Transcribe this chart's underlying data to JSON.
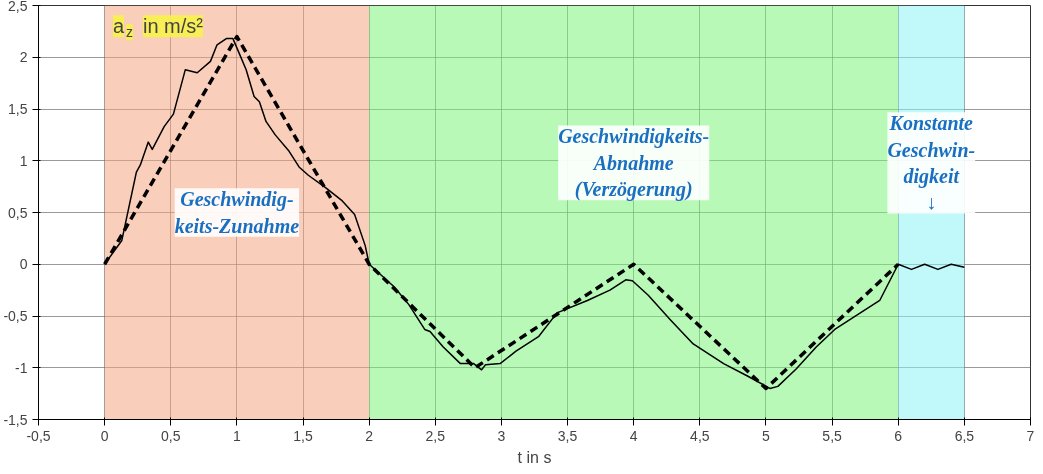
{
  "chart_data": {
    "type": "line",
    "xlabel": "t in s",
    "ylabel": "a$_{z}$ in m/s²",
    "xlim": [
      -0.5,
      7
    ],
    "ylim": [
      -1.5,
      2.5
    ],
    "xticks": [
      {
        "value": -0.5,
        "label": "-0,5"
      },
      0,
      {
        "value": 0.5,
        "label": "0,5"
      },
      1,
      {
        "value": 1.5,
        "label": "1,5"
      },
      2,
      {
        "value": 2.5,
        "label": "2,5"
      },
      3,
      {
        "value": 3.5,
        "label": "3,5"
      },
      4,
      {
        "value": 4.5,
        "label": "4,5"
      },
      5,
      {
        "value": 5.5,
        "label": "5,5"
      },
      6,
      {
        "value": 6.5,
        "label": "6,5"
      },
      7
    ],
    "yticks": [
      {
        "value": -1.5,
        "label": "-1,5"
      },
      -1,
      {
        "value": -0.5,
        "label": "-0,5"
      },
      0,
      {
        "value": 0.5,
        "label": "0,5"
      },
      1,
      {
        "value": 1.5,
        "label": "1,5"
      },
      2,
      {
        "value": 2.5,
        "label": "2,5"
      }
    ],
    "grid": true,
    "marker": "none",
    "bands": [
      {
        "axis": "x",
        "from": 0,
        "to": 2,
        "label": "Geschwindig-\nkeits-Zunahme",
        "color": "#f4a582"
      },
      {
        "axis": "x",
        "from": 2,
        "to": 6,
        "label": "Geschwindigkeits-\nAbnahme\n(Verzögerung)",
        "color": "#7ef47e"
      },
      {
        "axis": "x",
        "from": 6,
        "to": 6.5,
        "label": "Konstante\nGeschwin-\ndigkeit\n↓",
        "color": "#8ef4f8"
      }
    ],
    "series": [
      {
        "color": "#000000",
        "line_style": "solid",
        "x": [
          0,
          0.13,
          0.19,
          0.24,
          0.27,
          0.33,
          0.36,
          0.45,
          0.52,
          0.61,
          0.7,
          0.8,
          0.85,
          0.92,
          0.97,
          1.02,
          1.07,
          1.13,
          1.17,
          1.22,
          1.29,
          1.39,
          1.47,
          1.54,
          1.67,
          1.79,
          1.89,
          1.97,
          2,
          2.19,
          2.3,
          2.42,
          2.46,
          2.56,
          2.69,
          2.79,
          2.85,
          2.88,
          2.99,
          3.11,
          3.28,
          3.42,
          3.65,
          3.82,
          3.94,
          3.99,
          4.11,
          4.28,
          4.45,
          4.68,
          4.86,
          5.03,
          5.09,
          5.23,
          5.38,
          5.52,
          5.69,
          5.86,
          6,
          6.1,
          6.2,
          6.3,
          6.4,
          6.5
        ],
        "values": [
          0,
          0.23,
          0.59,
          0.89,
          0.96,
          1.18,
          1.11,
          1.33,
          1.45,
          1.88,
          1.85,
          1.96,
          2.12,
          2.18,
          2.18,
          2.03,
          1.88,
          1.62,
          1.57,
          1.38,
          1.25,
          1.1,
          0.94,
          0.86,
          0.74,
          0.62,
          0.48,
          0.18,
          0,
          -0.22,
          -0.39,
          -0.63,
          -0.65,
          -0.8,
          -0.96,
          -0.96,
          -1.02,
          -0.97,
          -0.96,
          -0.84,
          -0.7,
          -0.47,
          -0.35,
          -0.25,
          -0.15,
          -0.16,
          -0.3,
          -0.54,
          -0.77,
          -0.96,
          -1.08,
          -1.2,
          -1.18,
          -1.01,
          -0.8,
          -0.63,
          -0.49,
          -0.35,
          0,
          -0.05,
          0,
          -0.05,
          0,
          -0.03
        ]
      },
      {
        "color": "#000000",
        "line_style": "dashed",
        "x": [
          0,
          1,
          2,
          2.8,
          4,
          5,
          6
        ],
        "values": [
          0,
          2.2,
          0,
          -1,
          0,
          -1.2,
          0
        ]
      }
    ]
  }
}
